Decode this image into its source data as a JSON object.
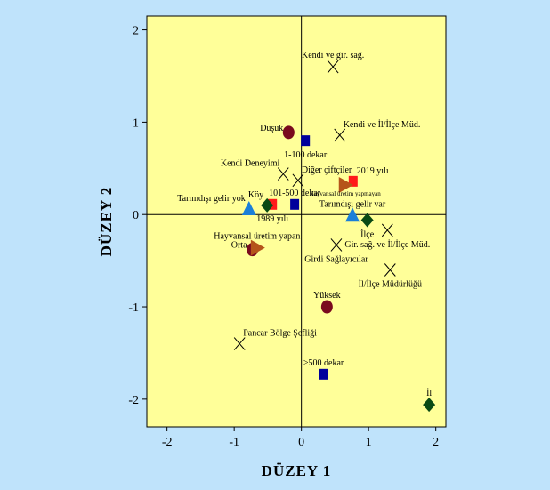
{
  "chart_data": {
    "type": "scatter",
    "title": "",
    "xlabel": "DÜZEY 1",
    "ylabel": "DÜZEY 2",
    "xlim": [
      -2.3,
      2.15
    ],
    "ylim": [
      -2.3,
      2.15
    ],
    "xticks": [
      "-2",
      "-1",
      "0",
      "1",
      "2"
    ],
    "yticks": [
      "-2",
      "-1",
      "0",
      "1",
      "2"
    ],
    "xtick_values": [
      -2,
      -1,
      0,
      1,
      2
    ],
    "ytick_values": [
      -2,
      -1,
      0,
      1,
      2
    ],
    "reference_lines": {
      "x": 0,
      "y": 0
    },
    "grid": false,
    "colors": {
      "plot_background": "#ffff99",
      "page_background": "#bfe3fb",
      "cross": "#000000",
      "square_blue": "#00009c",
      "square_red": "#ff1a1a",
      "circle": "#7a0a1e",
      "triangle_up": "#1a7fd8",
      "triangle_right": "#b5541a",
      "diamond": "#0a4a14"
    },
    "series": [
      {
        "marker": "cross",
        "points": [
          {
            "x": 0.47,
            "y": 1.6,
            "label": "Kendi ve gir. sağ.",
            "label_pos": "above"
          },
          {
            "x": 0.57,
            "y": 0.86,
            "label": "Kendi ve İl/İlçe Müd.",
            "label_pos": "upper-right"
          },
          {
            "x": -0.27,
            "y": 0.44,
            "label": "Kendi Deneyimi",
            "label_pos": "upper-left"
          },
          {
            "x": -0.05,
            "y": 0.37,
            "label": "Diğer çiftçiler",
            "label_pos": "upper-right"
          },
          {
            "x": 0.52,
            "y": -0.33,
            "label": "Girdi Sağlayıcılar",
            "label_pos": "below"
          },
          {
            "x": 1.28,
            "y": -0.17,
            "label": "Gir. sağ. ve İl/İlçe Müd.",
            "label_pos": "below"
          },
          {
            "x": 1.32,
            "y": -0.6,
            "label": "İl/İlçe Müdürlüğü",
            "label_pos": "below"
          },
          {
            "x": -0.92,
            "y": -1.4,
            "label": "Pancar Bölge Şefliği",
            "label_pos": "upper-right"
          }
        ]
      },
      {
        "marker": "square_blue",
        "points": [
          {
            "x": 0.06,
            "y": 0.8,
            "label": "1-100 dekar",
            "label_pos": "below"
          },
          {
            "x": -0.1,
            "y": 0.11,
            "label": "101-500 dekar",
            "label_pos": "above"
          },
          {
            "x": 0.33,
            "y": -1.73,
            "label": ">500 dekar",
            "label_pos": "above"
          }
        ]
      },
      {
        "marker": "square_red",
        "points": [
          {
            "x": 0.77,
            "y": 0.36,
            "label": "2019 yılı",
            "label_pos": "upper-right"
          },
          {
            "x": -0.43,
            "y": 0.11,
            "label": "1989 yılı",
            "label_pos": "below"
          }
        ]
      },
      {
        "marker": "circle",
        "points": [
          {
            "x": -0.19,
            "y": 0.89,
            "label": "Düşük",
            "label_pos": "left"
          },
          {
            "x": -0.73,
            "y": -0.38,
            "label": "Orta",
            "label_pos": "left"
          },
          {
            "x": 0.38,
            "y": -1.0,
            "label": "Yüksek",
            "label_pos": "above"
          }
        ]
      },
      {
        "marker": "triangle_up",
        "points": [
          {
            "x": -0.78,
            "y": 0.06,
            "label": "Tarımdışı gelir yok",
            "label_pos": "upper-left"
          },
          {
            "x": 0.76,
            "y": -0.01,
            "label": "Tarımdışı gelir var",
            "label_pos": "above"
          }
        ]
      },
      {
        "marker": "triangle_right",
        "points": [
          {
            "x": 0.65,
            "y": 0.32,
            "label": "Hayvansal üretim yapmayan",
            "label_pos": "below-small"
          },
          {
            "x": -0.66,
            "y": -0.36,
            "label": "Hayvansal üretim yapan",
            "label_pos": "above"
          }
        ]
      },
      {
        "marker": "diamond",
        "points": [
          {
            "x": -0.51,
            "y": 0.1,
            "label": "Köy",
            "label_pos": "upper-left"
          },
          {
            "x": 0.98,
            "y": -0.06,
            "label": "İlçe",
            "label_pos": "below"
          },
          {
            "x": 1.9,
            "y": -2.06,
            "label": "İl",
            "label_pos": "above"
          }
        ]
      }
    ]
  }
}
